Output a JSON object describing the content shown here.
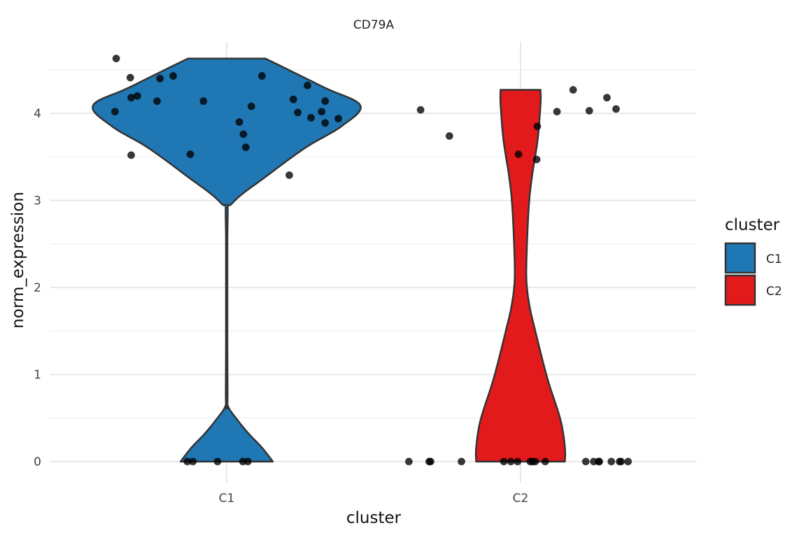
{
  "chart_data": {
    "type": "violin",
    "title": "CD79A",
    "xlabel": "cluster",
    "ylabel": "norm_expression",
    "categories": [
      "C1",
      "C2"
    ],
    "xlim": [
      0.4,
      2.6
    ],
    "ylim": [
      -0.24,
      4.82
    ],
    "yticks": [
      0,
      1,
      2,
      3,
      4
    ],
    "grid": true,
    "legend": {
      "title": "cluster",
      "placement": "right",
      "entries": [
        "C1",
        "C2"
      ]
    },
    "colors": {
      "C1": "#1f77b4",
      "C2": "#e31a1c",
      "outline": "#333333",
      "point": "#000000"
    },
    "violins": [
      {
        "category": "C1",
        "profile": [
          [
            0,
            0.157
          ],
          [
            0.16,
            0.12
          ],
          [
            0.32,
            0.075
          ],
          [
            0.48,
            0.036
          ],
          [
            0.64,
            0.004
          ],
          [
            0.8,
            0.003
          ],
          [
            2.73,
            0.003
          ],
          [
            2.97,
            0.02
          ],
          [
            3.29,
            0.14
          ],
          [
            3.61,
            0.27
          ],
          [
            3.85,
            0.39
          ],
          [
            4.09,
            0.455
          ],
          [
            4.3,
            0.33
          ],
          [
            4.63,
            0.132
          ]
        ]
      },
      {
        "category": "C2",
        "profile": [
          [
            0,
            0.151
          ],
          [
            0.16,
            0.151
          ],
          [
            0.48,
            0.136
          ],
          [
            0.96,
            0.091
          ],
          [
            1.53,
            0.048
          ],
          [
            1.8,
            0.03
          ],
          [
            2.09,
            0.02
          ],
          [
            2.5,
            0.022
          ],
          [
            2.97,
            0.029
          ],
          [
            3.3,
            0.04
          ],
          [
            3.69,
            0.058
          ],
          [
            4.1,
            0.068
          ],
          [
            4.27,
            0.068
          ]
        ]
      }
    ],
    "points": [
      {
        "category": "C1",
        "x": 0.624,
        "y": 4.63
      },
      {
        "category": "C1",
        "x": 0.672,
        "y": 4.41
      },
      {
        "category": "C1",
        "x": 0.675,
        "y": 4.18
      },
      {
        "category": "C1",
        "x": 0.696,
        "y": 4.2
      },
      {
        "category": "C1",
        "x": 0.62,
        "y": 4.02
      },
      {
        "category": "C1",
        "x": 0.763,
        "y": 4.14
      },
      {
        "category": "C1",
        "x": 0.773,
        "y": 4.4
      },
      {
        "category": "C1",
        "x": 0.818,
        "y": 4.43
      },
      {
        "category": "C1",
        "x": 0.921,
        "y": 4.14
      },
      {
        "category": "C1",
        "x": 0.675,
        "y": 3.52
      },
      {
        "category": "C1",
        "x": 0.876,
        "y": 3.53
      },
      {
        "category": "C1",
        "x": 1.043,
        "y": 3.9
      },
      {
        "category": "C1",
        "x": 1.057,
        "y": 3.76
      },
      {
        "category": "C1",
        "x": 1.065,
        "y": 3.61
      },
      {
        "category": "C1",
        "x": 1.084,
        "y": 4.08
      },
      {
        "category": "C1",
        "x": 1.12,
        "y": 4.43
      },
      {
        "category": "C1",
        "x": 1.213,
        "y": 3.29
      },
      {
        "category": "C1",
        "x": 1.227,
        "y": 4.16
      },
      {
        "category": "C1",
        "x": 1.242,
        "y": 4.01
      },
      {
        "category": "C1",
        "x": 1.275,
        "y": 4.32
      },
      {
        "category": "C1",
        "x": 1.287,
        "y": 3.95
      },
      {
        "category": "C1",
        "x": 1.323,
        "y": 4.02
      },
      {
        "category": "C1",
        "x": 1.335,
        "y": 4.14
      },
      {
        "category": "C1",
        "x": 1.335,
        "y": 3.89
      },
      {
        "category": "C1",
        "x": 1.38,
        "y": 3.94
      },
      {
        "category": "C1",
        "x": 0.866,
        "y": 0
      },
      {
        "category": "C1",
        "x": 0.885,
        "y": 0
      },
      {
        "category": "C1",
        "x": 0.969,
        "y": 0
      },
      {
        "category": "C1",
        "x": 1.055,
        "y": 0
      },
      {
        "category": "C1",
        "x": 1.072,
        "y": 0
      },
      {
        "category": "C2",
        "x": 1.66,
        "y": 4.04
      },
      {
        "category": "C2",
        "x": 1.758,
        "y": 3.74
      },
      {
        "category": "C2",
        "x": 1.993,
        "y": 3.53
      },
      {
        "category": "C2",
        "x": 2.057,
        "y": 3.85
      },
      {
        "category": "C2",
        "x": 2.055,
        "y": 3.47
      },
      {
        "category": "C2",
        "x": 2.124,
        "y": 4.02
      },
      {
        "category": "C2",
        "x": 2.179,
        "y": 4.27
      },
      {
        "category": "C2",
        "x": 2.234,
        "y": 4.03
      },
      {
        "category": "C2",
        "x": 2.294,
        "y": 4.18
      },
      {
        "category": "C2",
        "x": 2.325,
        "y": 4.05
      },
      {
        "category": "C2",
        "x": 1.62,
        "y": 0
      },
      {
        "category": "C2",
        "x": 1.689,
        "y": 0
      },
      {
        "category": "C2",
        "x": 1.694,
        "y": 0
      },
      {
        "category": "C2",
        "x": 1.799,
        "y": 0
      },
      {
        "category": "C2",
        "x": 1.943,
        "y": 0
      },
      {
        "category": "C2",
        "x": 1.967,
        "y": 0
      },
      {
        "category": "C2",
        "x": 1.99,
        "y": 0
      },
      {
        "category": "C2",
        "x": 2.033,
        "y": 0
      },
      {
        "category": "C2",
        "x": 2.041,
        "y": 0
      },
      {
        "category": "C2",
        "x": 2.05,
        "y": 0
      },
      {
        "category": "C2",
        "x": 2.084,
        "y": 0
      },
      {
        "category": "C2",
        "x": 2.222,
        "y": 0
      },
      {
        "category": "C2",
        "x": 2.249,
        "y": 0
      },
      {
        "category": "C2",
        "x": 2.266,
        "y": 0
      },
      {
        "category": "C2",
        "x": 2.268,
        "y": 0
      },
      {
        "category": "C2",
        "x": 2.309,
        "y": 0
      },
      {
        "category": "C2",
        "x": 2.337,
        "y": 0
      },
      {
        "category": "C2",
        "x": 2.342,
        "y": 0
      },
      {
        "category": "C2",
        "x": 2.366,
        "y": 0
      }
    ]
  }
}
